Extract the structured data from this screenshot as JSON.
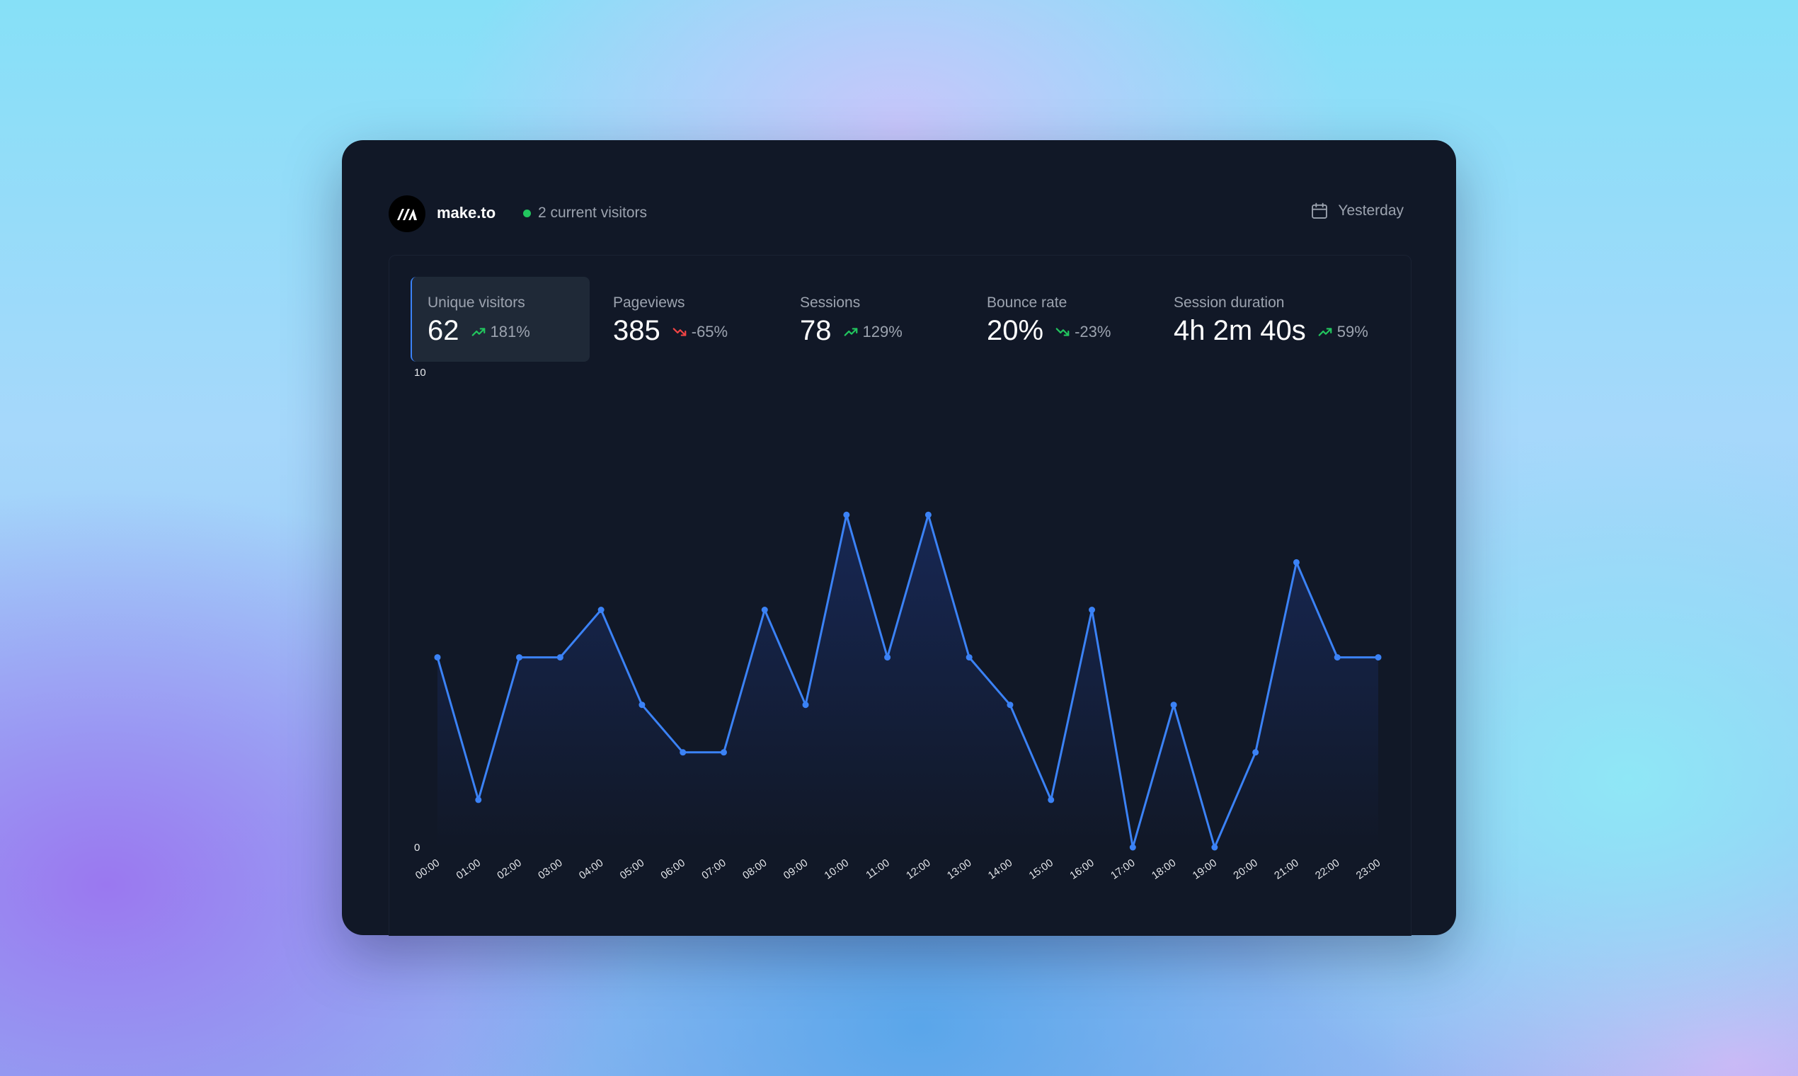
{
  "header": {
    "site_name": "make.to",
    "live_visitors": "2 current visitors",
    "date_range": "Yesterday"
  },
  "tabs": [
    {
      "label": "Unique visitors",
      "value": "62",
      "change": "181%",
      "trend": "up",
      "active": true
    },
    {
      "label": "Pageviews",
      "value": "385",
      "change": "-65%",
      "trend": "down",
      "active": false
    },
    {
      "label": "Sessions",
      "value": "78",
      "change": "129%",
      "trend": "up",
      "active": false
    },
    {
      "label": "Bounce rate",
      "value": "20%",
      "change": "-23%",
      "trend": "down-good",
      "active": false
    },
    {
      "label": "Session duration",
      "value": "4h 2m 40s",
      "change": "59%",
      "trend": "up",
      "active": false
    }
  ],
  "icons": {
    "logo": "make-logo-icon",
    "calendar": "calendar-icon",
    "trend_up": "trending-up-icon",
    "trend_down": "trending-down-icon"
  },
  "colors": {
    "line": "#3b82f6",
    "up": "#22c55e",
    "down": "#ef4444",
    "live": "#22c55e"
  },
  "chart_data": {
    "type": "area",
    "x": [
      "00:00",
      "01:00",
      "02:00",
      "03:00",
      "04:00",
      "05:00",
      "06:00",
      "07:00",
      "08:00",
      "09:00",
      "10:00",
      "11:00",
      "12:00",
      "13:00",
      "14:00",
      "15:00",
      "16:00",
      "17:00",
      "18:00",
      "19:00",
      "20:00",
      "21:00",
      "22:00",
      "23:00"
    ],
    "series": [
      {
        "values": [
          4,
          1,
          4,
          4,
          5,
          3,
          2,
          2,
          5,
          3,
          7,
          4,
          7,
          4,
          3,
          1,
          5,
          0,
          3,
          0,
          2,
          6,
          4,
          4
        ]
      }
    ],
    "ylim": [
      0,
      10
    ],
    "y_ticks": [
      "0",
      "10"
    ],
    "grid": false,
    "legend": "none"
  }
}
